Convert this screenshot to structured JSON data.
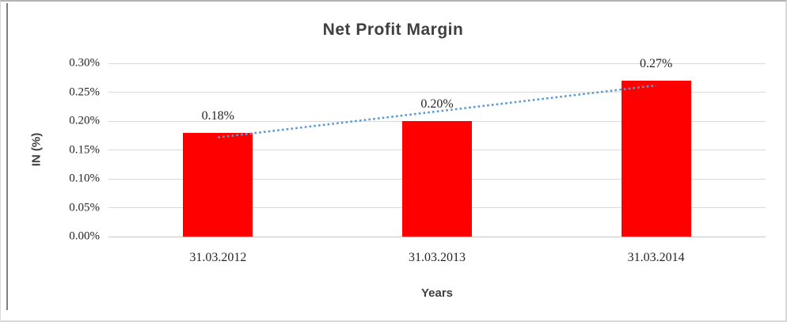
{
  "chart_data": {
    "type": "bar",
    "title": "Net Profit Margin",
    "xlabel": "Years",
    "ylabel": "IN (%)",
    "categories": [
      "31.03.2012",
      "31.03.2013",
      "31.03.2014"
    ],
    "values": [
      0.18,
      0.2,
      0.27
    ],
    "data_labels": [
      "0.18%",
      "0.20%",
      "0.27%"
    ],
    "unit": "%",
    "ylim": [
      0,
      0.3
    ],
    "ytick_step": 0.05,
    "ytick_labels": [
      "0.00%",
      "0.05%",
      "0.10%",
      "0.15%",
      "0.20%",
      "0.25%",
      "0.30%"
    ],
    "grid": true,
    "legend": "none",
    "trendline": {
      "type": "linear",
      "style": "dotted"
    },
    "colors": {
      "bar": "#ff0000",
      "trendline": "#5b9bd5",
      "gridline": "#d9d9d9",
      "axis_line": "#c6c6c6",
      "title_text": "#404040",
      "tick_text": "#262626"
    }
  }
}
